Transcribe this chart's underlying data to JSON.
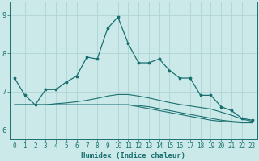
{
  "xlabel": "Humidex (Indice chaleur)",
  "xlim": [
    -0.5,
    23.5
  ],
  "ylim": [
    5.75,
    9.35
  ],
  "yticks": [
    6,
    7,
    8,
    9
  ],
  "xticks": [
    0,
    1,
    2,
    3,
    4,
    5,
    6,
    7,
    8,
    9,
    10,
    11,
    12,
    13,
    14,
    15,
    16,
    17,
    18,
    19,
    20,
    21,
    22,
    23
  ],
  "bg_color": "#cce9e9",
  "line_color": "#1a7070",
  "grid_color": "#afd4d4",
  "lines": [
    [
      7.35,
      6.9,
      6.65,
      7.05,
      7.05,
      7.25,
      7.4,
      7.9,
      7.85,
      8.65,
      8.95,
      8.25,
      7.75,
      7.75,
      7.85,
      7.55,
      7.35,
      7.35,
      6.9,
      6.9,
      6.6,
      6.5,
      6.3,
      6.25
    ],
    [
      6.65,
      6.65,
      6.65,
      6.65,
      6.68,
      6.7,
      6.73,
      6.77,
      6.82,
      6.88,
      6.92,
      6.92,
      6.88,
      6.83,
      6.77,
      6.71,
      6.66,
      6.62,
      6.58,
      6.54,
      6.46,
      6.38,
      6.28,
      6.22
    ],
    [
      6.65,
      6.65,
      6.65,
      6.65,
      6.65,
      6.65,
      6.65,
      6.65,
      6.65,
      6.65,
      6.65,
      6.65,
      6.63,
      6.6,
      6.55,
      6.5,
      6.45,
      6.4,
      6.35,
      6.3,
      6.25,
      6.22,
      6.2,
      6.18
    ],
    [
      6.65,
      6.65,
      6.65,
      6.65,
      6.65,
      6.65,
      6.65,
      6.65,
      6.65,
      6.65,
      6.65,
      6.65,
      6.6,
      6.55,
      6.5,
      6.45,
      6.4,
      6.35,
      6.3,
      6.25,
      6.22,
      6.2,
      6.18,
      6.18
    ]
  ]
}
